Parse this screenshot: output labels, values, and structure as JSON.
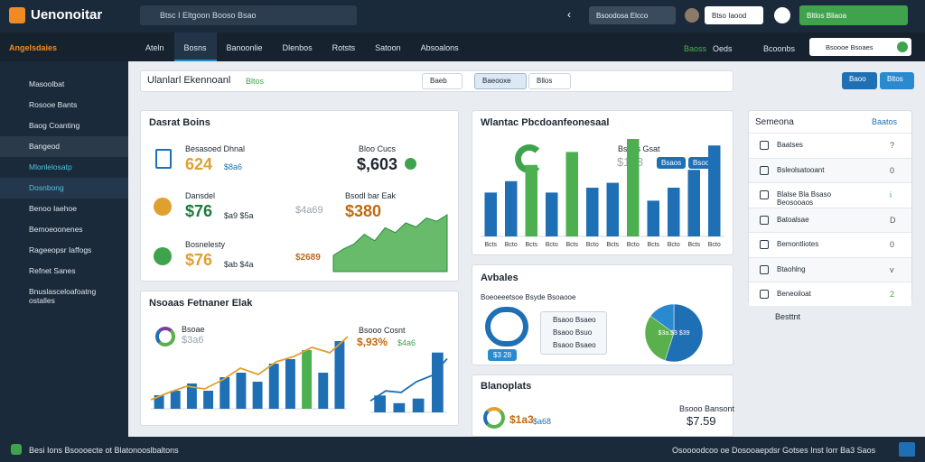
{
  "topbar": {
    "logo": "Uenonoitar",
    "search": "Btsc I Eltgoon Booso Bsao",
    "actions": [
      "Bsoodosa Elcco",
      "Btso Iaood",
      "Bltlos Bliaoa"
    ]
  },
  "nav": {
    "section": "Angelsdaies",
    "tabs": [
      "Ateln",
      "Bosns",
      "Banoonlie",
      "Dlenbos",
      "Rotsts",
      "Satoon",
      "Absoalons"
    ],
    "active_tab": 1,
    "right": [
      "Baoss",
      "Oeds",
      "Bcoonbs"
    ],
    "search": "Bsoooe Bsoaes"
  },
  "sidebar": {
    "items": [
      "Masoolbat",
      "Rosooe Bants",
      "Baog Coanting",
      "Bangeod",
      "Mlonlelosatp",
      "Dosnbong",
      "Benoo Iaehoe",
      "Bemoeoonenes",
      "Rageeopsr Iaffogs",
      "Refnet Sanes",
      "Bnuslasceloafoatng ostalles"
    ],
    "active_item": 5
  },
  "toolbar": {
    "title": "Ulanlarl Ekennoanl",
    "tag": "Bltos",
    "buttons": [
      "Baeb",
      "Baeooxe",
      "Bllos"
    ],
    "right_buttons": [
      "Baoo",
      "Bltos"
    ]
  },
  "sales": {
    "title": "Dasrat Boins",
    "metrics": [
      {
        "label": "Besasoed Dhnal",
        "value": "624",
        "sub": "$8a6"
      },
      {
        "label": "Dansdel",
        "value": "$76",
        "sub": "$a9 $5a"
      },
      {
        "label": "Bosnelesty",
        "value": "$76",
        "sub": "$ab $4a"
      }
    ],
    "highlights": [
      {
        "label": "Bloo Cucs",
        "value": "$,603"
      },
      {
        "label": "Bsodl bar Eak",
        "value": "$380",
        "sub": "$4a69"
      }
    ],
    "aside": [
      "$4a69",
      "$2689"
    ],
    "area": {
      "values": [
        20,
        28,
        34,
        46,
        38,
        54,
        48,
        60,
        55,
        66,
        62,
        70
      ],
      "color": "#4caf50"
    }
  },
  "performance": {
    "title": "Nsoaas Fetnaner Elak",
    "legend": "Bsoae",
    "legend_value": "$3a6",
    "bars": {
      "values": [
        15,
        20,
        28,
        20,
        35,
        40,
        30,
        50,
        55,
        65,
        40,
        75
      ],
      "colors": [
        "#1f6fb5",
        "#1f6fb5",
        "#1f6fb5",
        "#1f6fb5",
        "#1f6fb5",
        "#1f6fb5",
        "#1f6fb5",
        "#1f6fb5",
        "#1f6fb5",
        "#4caf50",
        "#1f6fb5",
        "#1f6fb5"
      ],
      "line": [
        10,
        18,
        25,
        22,
        32,
        45,
        38,
        52,
        58,
        68,
        62,
        80
      ],
      "line_color": "#e0a030"
    },
    "side_label": "Bsooo Cosnt",
    "side_value": "$,93%",
    "side_sub": "$4a6",
    "side": {
      "values": [
        22,
        12,
        18,
        78
      ],
      "colors": [
        "#1f6fb5",
        "#1f6fb5",
        "#1f6fb5",
        "#1f6fb5"
      ],
      "line": [
        15,
        28,
        26,
        40,
        48,
        70
      ],
      "line_color": "#1f6fb5"
    }
  },
  "procurement": {
    "title": "Wlantac Pbcdoanfeonesaal",
    "label": "Bsdas Gsat",
    "value": "$188",
    "badges": [
      "Bsaos",
      "Bsoo"
    ],
    "bars": {
      "values": [
        27,
        34,
        44,
        27,
        52,
        30,
        33,
        60,
        22,
        30,
        41,
        56
      ],
      "colors": [
        "#1f6fb5",
        "#1f6fb5",
        "#4caf50",
        "#1f6fb5",
        "#4caf50",
        "#1f6fb5",
        "#1f6fb5",
        "#4caf50",
        "#1f6fb5",
        "#1f6fb5",
        "#1f6fb5",
        "#1f6fb5"
      ]
    },
    "categories": [
      "Bcts",
      "Bcto",
      "Bcts",
      "Bcto",
      "Bcts",
      "Bcto",
      "Bcts",
      "Bcto",
      "Bcts",
      "Bcto",
      "Bcts",
      "Bcto"
    ]
  },
  "available": {
    "title": "Avbales",
    "subtitle": "Boeoeeetsoe Bsyde Bsoaooe",
    "ring": "$3 28",
    "rows": [
      "Bsaoo Bsaeo",
      "Bsaoo Bsuo",
      "Bsaoo Bsaeo"
    ],
    "pie": {
      "values": [
        55,
        30,
        15
      ],
      "colors": [
        "#1f6fb5",
        "#5ab04c",
        "#2a8ad0"
      ],
      "label": "$3a.$3 $39"
    }
  },
  "templates": {
    "title": "Blanoplats",
    "value": "$1a3",
    "sub": "$a68",
    "label": "Bsooo Bansont",
    "total": "$7.59"
  },
  "panel": {
    "title": "Semeona",
    "link": "Baatos",
    "rows": [
      {
        "label": "Baatses",
        "mark": "?"
      },
      {
        "label": "Bsleolsatooant",
        "mark": "0"
      },
      {
        "label": "Blalse Bla Bsaso Beosooaos",
        "mark": "i"
      },
      {
        "label": "Batoalsae",
        "mark": "D"
      },
      {
        "label": "Bemontliotes",
        "mark": "0"
      },
      {
        "label": "Btaohlng",
        "mark": "v"
      },
      {
        "label": "Beneoiloat",
        "mark": "2"
      }
    ],
    "footer": "Besttnt"
  },
  "statusbar": {
    "left": "Besi Ions Bsoooecte ot Blatonooslbaltons",
    "right": "Osoooodcoo oe Dosooaepdsr Gotses Inst Iorr Ba3 Saos"
  }
}
